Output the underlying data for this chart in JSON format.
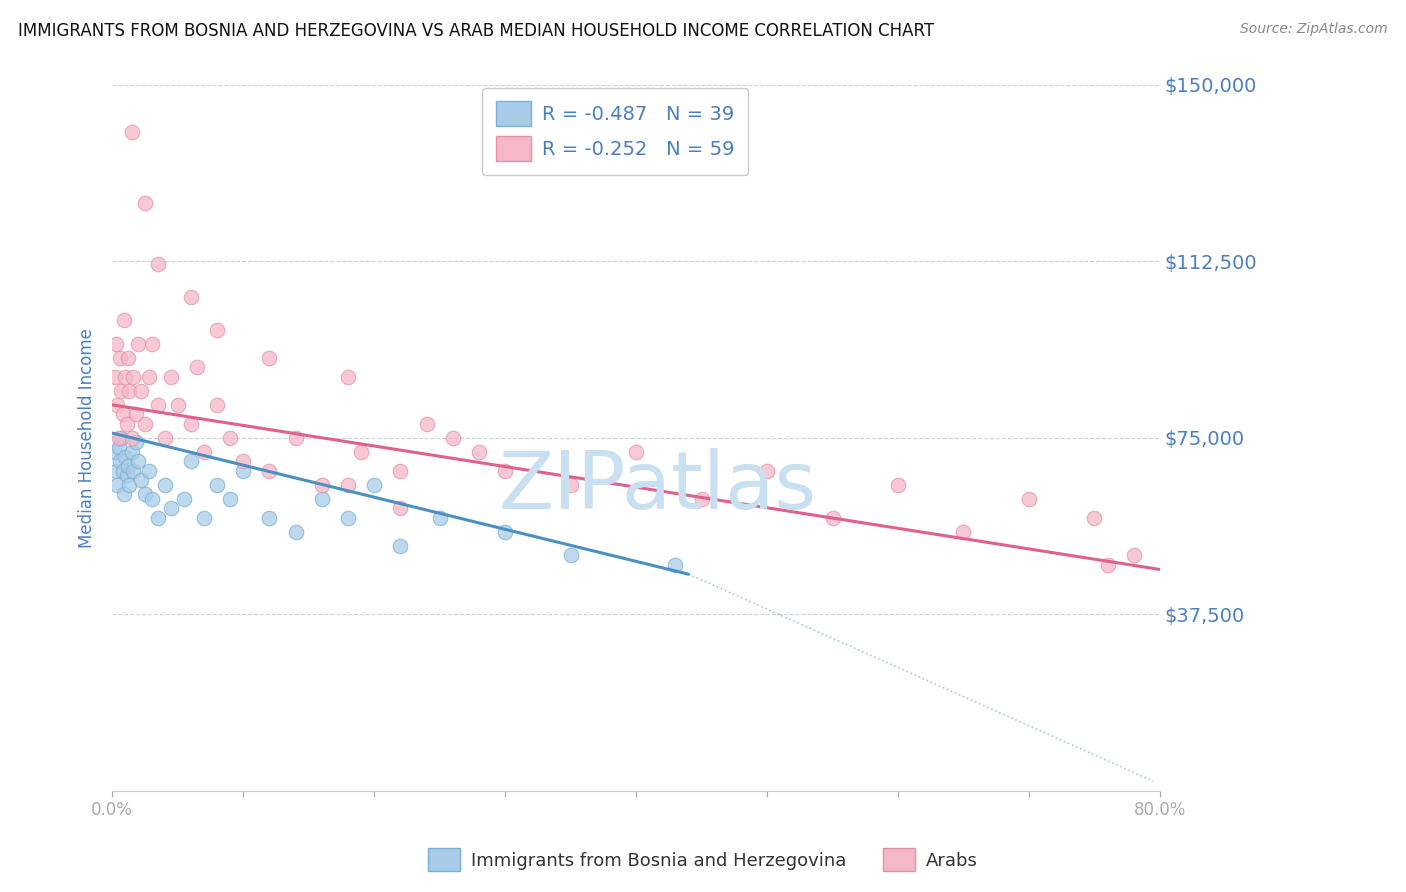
{
  "title": "IMMIGRANTS FROM BOSNIA AND HERZEGOVINA VS ARAB MEDIAN HOUSEHOLD INCOME CORRELATION CHART",
  "source": "Source: ZipAtlas.com",
  "ylabel": "Median Household Income",
  "xlim": [
    0.0,
    0.8
  ],
  "ylim": [
    0,
    150000
  ],
  "yticks": [
    0,
    37500,
    75000,
    112500,
    150000
  ],
  "ytick_labels": [
    "",
    "$37,500",
    "$75,000",
    "$112,500",
    "$150,000"
  ],
  "xticks": [
    0.0,
    0.1,
    0.2,
    0.3,
    0.4,
    0.5,
    0.6,
    0.7,
    0.8
  ],
  "xtick_labels": [
    "0.0%",
    "",
    "",
    "",
    "",
    "",
    "",
    "",
    "80.0%"
  ],
  "blue_label": "Immigrants from Bosnia and Herzegovina",
  "pink_label": "Arabs",
  "blue_R": -0.487,
  "blue_N": 39,
  "pink_R": -0.252,
  "pink_N": 59,
  "blue_color": "#a8cce8",
  "pink_color": "#f4b8c8",
  "blue_edge_color": "#7ab0d4",
  "pink_edge_color": "#e890aa",
  "blue_line_color": "#4a90c4",
  "pink_line_color": "#e06090",
  "watermark": "ZIPatlas",
  "watermark_color": "#c8e0f0",
  "blue_scatter_x": [
    0.002,
    0.003,
    0.004,
    0.005,
    0.006,
    0.007,
    0.008,
    0.009,
    0.01,
    0.011,
    0.012,
    0.013,
    0.015,
    0.016,
    0.018,
    0.02,
    0.022,
    0.025,
    0.028,
    0.03,
    0.035,
    0.04,
    0.045,
    0.055,
    0.06,
    0.07,
    0.08,
    0.09,
    0.1,
    0.12,
    0.14,
    0.16,
    0.18,
    0.2,
    0.22,
    0.25,
    0.3,
    0.35,
    0.43
  ],
  "blue_scatter_y": [
    72000,
    68000,
    65000,
    73000,
    70000,
    75000,
    68000,
    63000,
    71000,
    67000,
    69000,
    65000,
    72000,
    68000,
    74000,
    70000,
    66000,
    63000,
    68000,
    62000,
    58000,
    65000,
    60000,
    62000,
    70000,
    58000,
    65000,
    62000,
    68000,
    58000,
    55000,
    62000,
    58000,
    65000,
    52000,
    58000,
    55000,
    50000,
    48000
  ],
  "pink_scatter_x": [
    0.002,
    0.003,
    0.004,
    0.005,
    0.006,
    0.007,
    0.008,
    0.009,
    0.01,
    0.011,
    0.012,
    0.013,
    0.015,
    0.016,
    0.018,
    0.02,
    0.022,
    0.025,
    0.028,
    0.03,
    0.035,
    0.04,
    0.045,
    0.05,
    0.06,
    0.065,
    0.07,
    0.08,
    0.09,
    0.1,
    0.12,
    0.14,
    0.16,
    0.19,
    0.22,
    0.26,
    0.3,
    0.35,
    0.4,
    0.45,
    0.5,
    0.55,
    0.6,
    0.65,
    0.7,
    0.75,
    0.78,
    0.015,
    0.025,
    0.035,
    0.06,
    0.08,
    0.12,
    0.18,
    0.24,
    0.28,
    0.18,
    0.22,
    0.76
  ],
  "pink_scatter_y": [
    88000,
    95000,
    82000,
    75000,
    92000,
    85000,
    80000,
    100000,
    88000,
    78000,
    92000,
    85000,
    75000,
    88000,
    80000,
    95000,
    85000,
    78000,
    88000,
    95000,
    82000,
    75000,
    88000,
    82000,
    78000,
    90000,
    72000,
    82000,
    75000,
    70000,
    68000,
    75000,
    65000,
    72000,
    68000,
    75000,
    68000,
    65000,
    72000,
    62000,
    68000,
    58000,
    65000,
    55000,
    62000,
    58000,
    50000,
    140000,
    125000,
    112000,
    105000,
    98000,
    92000,
    88000,
    78000,
    72000,
    65000,
    60000,
    48000
  ],
  "blue_line_x0": 0.0,
  "blue_line_x1": 0.44,
  "blue_line_y0": 76000,
  "blue_line_y1": 46000,
  "pink_line_x0": 0.0,
  "pink_line_x1": 0.8,
  "pink_line_y0": 82000,
  "pink_line_y1": 47000,
  "dashed_line_x0": 0.44,
  "dashed_line_x1": 0.795,
  "dashed_line_y0": 46000,
  "dashed_line_y1": 2000,
  "background_color": "#ffffff",
  "grid_color": "#b8c8dc",
  "tick_color": "#4a7fc0",
  "title_color": "#111111",
  "source_color": "#888888"
}
